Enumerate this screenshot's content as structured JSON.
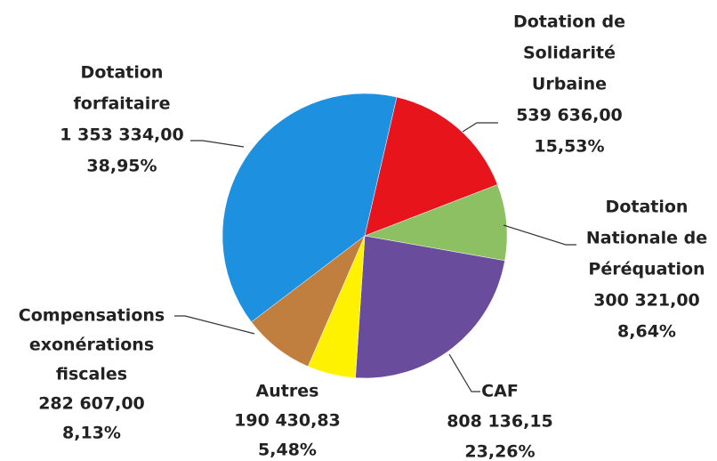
{
  "chart_data": {
    "type": "pie",
    "categories": [
      [
        "Dotation de",
        "Solidarité",
        "Urbaine"
      ],
      [
        "Dotation",
        "Nationale de",
        "Péréquation"
      ],
      [
        "CAF"
      ],
      [
        "Autres"
      ],
      [
        "Compensations",
        "exonérations",
        "fiscales"
      ],
      [
        "Dotation",
        "forfaitaire"
      ]
    ],
    "values": [
      539636,
      300321,
      808136.15,
      190430.83,
      282607,
      1353334
    ],
    "value_labels": [
      "539 636,00",
      "300 321,00",
      "808 136,15",
      "190 430,83",
      "282 607,00",
      "1 353 334,00"
    ],
    "percents": [
      15.53,
      8.64,
      23.26,
      5.48,
      8.13,
      38.95
    ],
    "percent_labels": [
      "15,53%",
      "8,64%",
      "23,26%",
      "5,48%",
      "8,13%",
      "38,95%"
    ],
    "colors": [
      "#e8141c",
      "#8dc063",
      "#6a4c9c",
      "#fff200",
      "#c07f3e",
      "#1e90e0"
    ]
  }
}
